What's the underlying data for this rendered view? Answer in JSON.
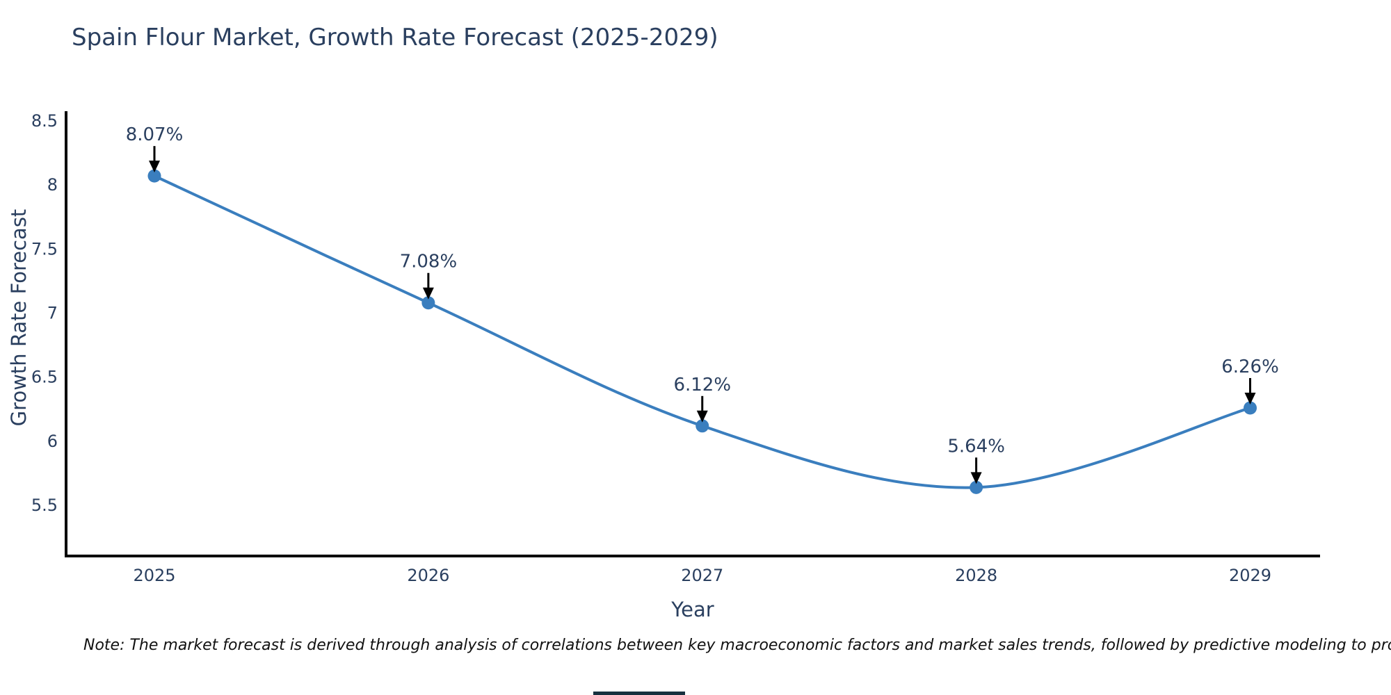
{
  "title": "Spain Flour Market, Growth Rate Forecast (2025-2029)",
  "note": "Note: The market forecast is derived through analysis of correlations between key macroeconomic factors and market sales trends, followed by predictive modeling to project future sales",
  "chart_data": {
    "type": "line",
    "title": "Spain Flour Market, Growth Rate Forecast (2025-2029)",
    "xlabel": "Year",
    "ylabel": "Growth Rate Forecast",
    "categories": [
      "2025",
      "2026",
      "2027",
      "2028",
      "2029"
    ],
    "series": [
      {
        "name": "Growth Rate Forecast",
        "values": [
          8.07,
          7.08,
          6.12,
          5.64,
          6.26
        ]
      }
    ],
    "point_labels": [
      "8.07%",
      "7.08%",
      "6.12%",
      "5.64%",
      "6.26%"
    ],
    "yticks": [
      8.5,
      8,
      7.5,
      7,
      6.5,
      6,
      5.5
    ],
    "ylim": [
      5.105,
      8.575
    ],
    "line_shape": "spline",
    "grid": false,
    "legend": "none",
    "markers": true,
    "annotations_arrow": true,
    "colors": {
      "line": "#3a7ebe",
      "marker": "#3a7ebe",
      "axis_line": "#000000",
      "tick_text": "#2a3f5f",
      "annotation_text": "#2a3f5f",
      "arrow": "#000000"
    }
  }
}
